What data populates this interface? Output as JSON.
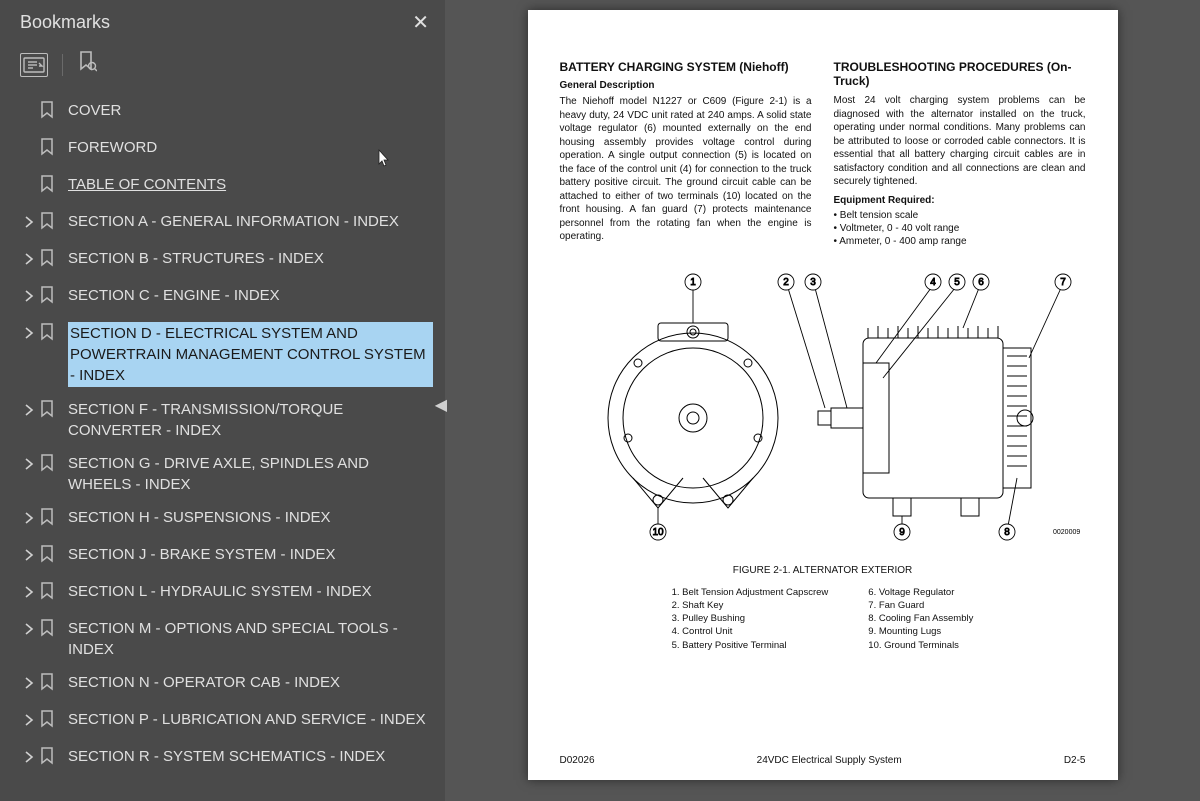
{
  "sidebar": {
    "title": "Bookmarks",
    "items": [
      {
        "label": "COVER",
        "hasChildren": false,
        "underline": false,
        "selected": false
      },
      {
        "label": "FOREWORD",
        "hasChildren": false,
        "underline": false,
        "selected": false
      },
      {
        "label": "TABLE OF CONTENTS",
        "hasChildren": false,
        "underline": true,
        "selected": false
      },
      {
        "label": "SECTION A - GENERAL INFORMATION - INDEX",
        "hasChildren": true,
        "underline": false,
        "selected": false
      },
      {
        "label": "SECTION B - STRUCTURES - INDEX",
        "hasChildren": true,
        "underline": false,
        "selected": false
      },
      {
        "label": "SECTION C - ENGINE - INDEX",
        "hasChildren": true,
        "underline": false,
        "selected": false
      },
      {
        "label": "SECTION D - ELECTRICAL SYSTEM AND POWERTRAIN MANAGEMENT CONTROL SYSTEM - INDEX",
        "hasChildren": true,
        "underline": false,
        "selected": true
      },
      {
        "label": "SECTION F - TRANSMISSION/TORQUE CONVERTER - INDEX",
        "hasChildren": true,
        "underline": false,
        "selected": false
      },
      {
        "label": "SECTION G - DRIVE AXLE, SPINDLES AND WHEELS - INDEX",
        "hasChildren": true,
        "underline": false,
        "selected": false
      },
      {
        "label": "SECTION H - SUSPENSIONS - INDEX",
        "hasChildren": true,
        "underline": false,
        "selected": false
      },
      {
        "label": "SECTION J - BRAKE SYSTEM - INDEX",
        "hasChildren": true,
        "underline": false,
        "selected": false
      },
      {
        "label": "SECTION L - HYDRAULIC SYSTEM - INDEX",
        "hasChildren": true,
        "underline": false,
        "selected": false
      },
      {
        "label": "SECTION M - OPTIONS AND SPECIAL TOOLS - INDEX",
        "hasChildren": true,
        "underline": false,
        "selected": false
      },
      {
        "label": "SECTION N - OPERATOR CAB - INDEX",
        "hasChildren": true,
        "underline": false,
        "selected": false
      },
      {
        "label": "SECTION P - LUBRICATION AND SERVICE - INDEX",
        "hasChildren": true,
        "underline": false,
        "selected": false
      },
      {
        "label": "SECTION R - SYSTEM SCHEMATICS - INDEX",
        "hasChildren": true,
        "underline": false,
        "selected": false
      }
    ]
  },
  "doc": {
    "left": {
      "h1": "BATTERY CHARGING SYSTEM (Niehoff)",
      "h2": "General Description",
      "p1": "The Niehoff model N1227 or C609 (Figure 2-1) is a heavy duty, 24 VDC unit rated at 240 amps. A solid state voltage regulator (6) mounted externally on the end housing assembly provides voltage control during operation. A single output connection (5) is located on the face of the control unit (4) for connection to the truck battery positive circuit. The ground circuit cable can be attached to either of two terminals (10) located on the front housing. A fan guard (7) protects maintenance personnel from the rotating fan when the engine is operating."
    },
    "right": {
      "h1": "TROUBLESHOOTING PROCEDURES (On-Truck)",
      "p1": "Most 24 volt charging system problems can be diagnosed with the alternator installed on the truck, operating under normal conditions. Many problems can be attributed to loose or corroded cable connectors. It is essential that all battery charging circuit cables are in satisfactory condition and all connections are clean and securely tightened.",
      "h3": "Equipment Required:",
      "equip": [
        "Belt tension scale",
        "Voltmeter, 0 - 40 volt range",
        "Ammeter, 0 - 400 amp range"
      ]
    },
    "figure": {
      "caption": "FIGURE 2-1. ALTERNATOR EXTERIOR",
      "callouts": [
        "1",
        "2",
        "3",
        "4",
        "5",
        "6",
        "7",
        "8",
        "9",
        "10"
      ],
      "partNo": "0020009",
      "legendLeft": [
        "1. Belt Tension Adjustment Capscrew",
        "2. Shaft Key",
        "3. Pulley Bushing",
        "4. Control Unit",
        "5. Battery Positive Terminal"
      ],
      "legendRight": [
        "6. Voltage Regulator",
        "7. Fan Guard",
        "8. Cooling Fan Assembly",
        "9. Mounting Lugs",
        "10. Ground Terminals"
      ]
    },
    "footer": {
      "left": "D02026",
      "center": "24VDC Electrical Supply System",
      "right": "D2-5"
    }
  },
  "colors": {
    "sidebar_bg": "#4a4a4a",
    "sidebar_text": "#e0e0e0",
    "selected_bg": "#a8d4f2",
    "page_bg": "#ffffff",
    "stroke": "#000000"
  }
}
